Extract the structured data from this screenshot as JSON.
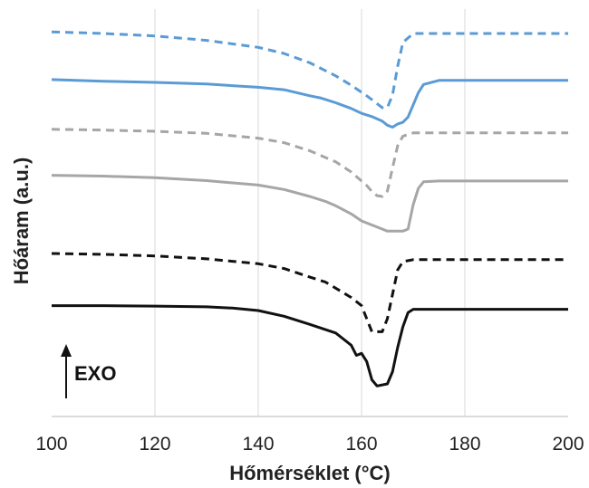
{
  "chart_data": {
    "type": "line",
    "xlabel": "Hőmérséklet (°C)",
    "ylabel": "Hőáram (a.u.)",
    "xlim": [
      100,
      200
    ],
    "x_ticks": [
      "100",
      "120",
      "140",
      "160",
      "180",
      "200"
    ],
    "ylim": [
      0,
      1
    ],
    "grid": "vertical",
    "annotation": {
      "text": "EXO",
      "arrow": "up"
    },
    "series": [
      {
        "color": "#5b9bd5",
        "dash": "dashed",
        "points": [
          [
            100,
            0.944
          ],
          [
            110,
            0.94
          ],
          [
            120,
            0.934
          ],
          [
            130,
            0.923
          ],
          [
            140,
            0.906
          ],
          [
            145,
            0.891
          ],
          [
            150,
            0.868
          ],
          [
            155,
            0.836
          ],
          [
            158,
            0.813
          ],
          [
            161,
            0.787
          ],
          [
            163,
            0.768
          ],
          [
            164,
            0.758
          ],
          [
            165,
            0.758
          ],
          [
            166,
            0.789
          ],
          [
            167,
            0.86
          ],
          [
            168,
            0.918
          ],
          [
            170,
            0.94
          ],
          [
            180,
            0.94
          ],
          [
            200,
            0.94
          ]
        ]
      },
      {
        "color": "#5b9bd5",
        "dash": "solid",
        "points": [
          [
            100,
            0.827
          ],
          [
            110,
            0.823
          ],
          [
            120,
            0.82
          ],
          [
            130,
            0.816
          ],
          [
            140,
            0.808
          ],
          [
            145,
            0.802
          ],
          [
            150,
            0.787
          ],
          [
            152,
            0.782
          ],
          [
            155,
            0.77
          ],
          [
            158,
            0.756
          ],
          [
            160,
            0.744
          ],
          [
            162,
            0.736
          ],
          [
            164,
            0.725
          ],
          [
            165,
            0.715
          ],
          [
            166,
            0.71
          ],
          [
            167,
            0.718
          ],
          [
            168,
            0.722
          ],
          [
            169,
            0.735
          ],
          [
            170,
            0.765
          ],
          [
            171,
            0.795
          ],
          [
            172,
            0.815
          ],
          [
            175,
            0.825
          ],
          [
            190,
            0.825
          ],
          [
            200,
            0.825
          ]
        ]
      },
      {
        "color": "#a6a6a6",
        "dash": "dashed",
        "points": [
          [
            100,
            0.705
          ],
          [
            110,
            0.703
          ],
          [
            120,
            0.7
          ],
          [
            130,
            0.695
          ],
          [
            140,
            0.683
          ],
          [
            145,
            0.672
          ],
          [
            150,
            0.652
          ],
          [
            155,
            0.625
          ],
          [
            158,
            0.6
          ],
          [
            161,
            0.567
          ],
          [
            162,
            0.552
          ],
          [
            163,
            0.542
          ],
          [
            164,
            0.54
          ],
          [
            165,
            0.553
          ],
          [
            166,
            0.61
          ],
          [
            167,
            0.665
          ],
          [
            168,
            0.688
          ],
          [
            170,
            0.696
          ],
          [
            180,
            0.696
          ],
          [
            200,
            0.696
          ]
        ]
      },
      {
        "color": "#a6a6a6",
        "dash": "solid",
        "points": [
          [
            100,
            0.592
          ],
          [
            110,
            0.59
          ],
          [
            120,
            0.586
          ],
          [
            130,
            0.579
          ],
          [
            140,
            0.568
          ],
          [
            145,
            0.557
          ],
          [
            150,
            0.54
          ],
          [
            153,
            0.528
          ],
          [
            155,
            0.517
          ],
          [
            158,
            0.497
          ],
          [
            160,
            0.48
          ],
          [
            162,
            0.47
          ],
          [
            164,
            0.46
          ],
          [
            165,
            0.455
          ],
          [
            168,
            0.455
          ],
          [
            169,
            0.46
          ],
          [
            170,
            0.52
          ],
          [
            171,
            0.56
          ],
          [
            172,
            0.576
          ],
          [
            175,
            0.578
          ],
          [
            190,
            0.578
          ],
          [
            200,
            0.578
          ]
        ]
      },
      {
        "color": "#111111",
        "dash": "dashed",
        "points": [
          [
            100,
            0.4
          ],
          [
            110,
            0.398
          ],
          [
            120,
            0.394
          ],
          [
            130,
            0.387
          ],
          [
            140,
            0.375
          ],
          [
            145,
            0.363
          ],
          [
            150,
            0.342
          ],
          [
            153,
            0.33
          ],
          [
            155,
            0.315
          ],
          [
            158,
            0.292
          ],
          [
            160,
            0.272
          ],
          [
            161,
            0.24
          ],
          [
            162,
            0.208
          ],
          [
            164,
            0.208
          ],
          [
            165,
            0.24
          ],
          [
            166,
            0.3
          ],
          [
            167,
            0.36
          ],
          [
            168,
            0.38
          ],
          [
            170,
            0.385
          ],
          [
            180,
            0.385
          ],
          [
            200,
            0.385
          ]
        ]
      },
      {
        "color": "#111111",
        "dash": "solid",
        "points": [
          [
            100,
            0.272
          ],
          [
            110,
            0.272
          ],
          [
            120,
            0.271
          ],
          [
            130,
            0.269
          ],
          [
            135,
            0.266
          ],
          [
            140,
            0.26
          ],
          [
            145,
            0.246
          ],
          [
            150,
            0.226
          ],
          [
            155,
            0.205
          ],
          [
            158,
            0.175
          ],
          [
            159,
            0.15
          ],
          [
            160,
            0.155
          ],
          [
            161,
            0.135
          ],
          [
            162,
            0.09
          ],
          [
            163,
            0.075
          ],
          [
            165,
            0.08
          ],
          [
            166,
            0.11
          ],
          [
            167,
            0.17
          ],
          [
            168,
            0.22
          ],
          [
            169,
            0.255
          ],
          [
            170,
            0.263
          ],
          [
            180,
            0.263
          ],
          [
            200,
            0.263
          ]
        ]
      }
    ]
  }
}
